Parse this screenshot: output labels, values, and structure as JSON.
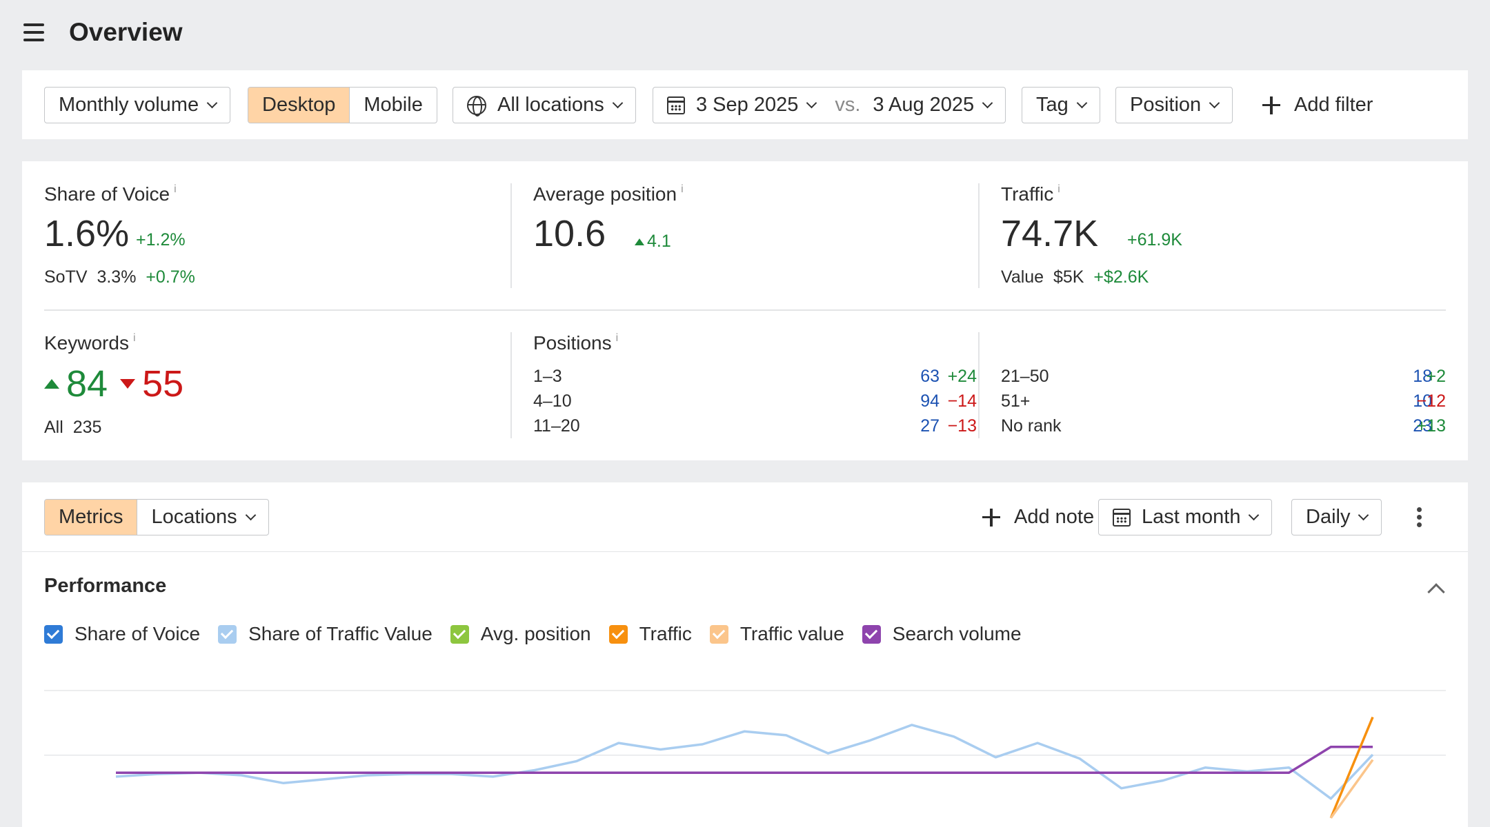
{
  "header": {
    "title": "Overview"
  },
  "filters": {
    "volume": "Monthly volume",
    "device_options": [
      "Desktop",
      "Mobile"
    ],
    "device_selected": "Desktop",
    "location": "All locations",
    "date_from": "3 Sep 2025",
    "vs": "vs.",
    "date_to": "3 Aug 2025",
    "tag": "Tag",
    "position": "Position",
    "add_filter": "Add filter"
  },
  "metrics": {
    "sov": {
      "label": "Share of Voice",
      "info": "i",
      "value": "1.6%",
      "delta": "+1.2%",
      "sub_label": "SoTV",
      "sub_value": "3.3%",
      "sub_delta": "+0.7%"
    },
    "avg_position": {
      "label": "Average position",
      "info": "i",
      "value": "10.6",
      "delta": "4.1"
    },
    "traffic": {
      "label": "Traffic",
      "info": "i",
      "value": "74.7K",
      "delta": "+61.9K",
      "sub_label": "Value",
      "sub_value": "$5K",
      "sub_delta": "+$2.6K"
    },
    "keywords": {
      "label": "Keywords",
      "info": "i",
      "up": "84",
      "down": "55",
      "all_label": "All",
      "all_value": "235"
    },
    "positions": {
      "label": "Positions",
      "info": "i",
      "left": [
        {
          "range": "1–3",
          "count": "63",
          "delta": "+24",
          "trend": "up"
        },
        {
          "range": "4–10",
          "count": "94",
          "delta": "−14",
          "trend": "down"
        },
        {
          "range": "11–20",
          "count": "27",
          "delta": "−13",
          "trend": "down"
        }
      ],
      "right": [
        {
          "range": "21–50",
          "count": "18",
          "delta": "+2",
          "trend": "up"
        },
        {
          "range": "51+",
          "count": "10",
          "delta": "−12",
          "trend": "down"
        },
        {
          "range": "No rank",
          "count": "23",
          "delta": "+13",
          "trend": "up"
        }
      ]
    }
  },
  "performance": {
    "tabs": [
      "Metrics",
      "Locations"
    ],
    "tab_selected": "Metrics",
    "add_note": "Add note",
    "period": "Last month",
    "interval": "Daily",
    "title": "Performance",
    "legend": [
      {
        "label": "Share of Voice",
        "color": "#2f7bd6",
        "checked": true
      },
      {
        "label": "Share of Traffic Value",
        "color": "#a9cdf0",
        "checked": true
      },
      {
        "label": "Avg. position",
        "color": "#8dc63f",
        "checked": true
      },
      {
        "label": "Traffic",
        "color": "#f7900f",
        "checked": true
      },
      {
        "label": "Traffic value",
        "color": "#fbc58b",
        "checked": true
      },
      {
        "label": "Search volume",
        "color": "#8e44ad",
        "checked": true
      }
    ]
  },
  "chart_data": {
    "type": "line",
    "title": "",
    "xlabel": "",
    "ylabel": "",
    "grid": true,
    "legend": "top-left",
    "x": [
      1,
      2,
      3,
      4,
      5,
      6,
      7,
      8,
      9,
      10,
      11,
      12,
      13,
      14,
      15,
      16,
      17,
      18,
      19,
      20,
      21,
      22,
      23,
      24,
      25,
      26,
      27,
      28,
      29,
      30,
      31
    ],
    "series": [
      {
        "name": "Share of Traffic Value",
        "color": "#a9cdf0",
        "values": [
          27,
          29,
          30,
          28,
          22,
          25,
          28,
          29,
          29,
          27,
          32,
          39,
          53,
          48,
          52,
          62,
          59,
          45,
          55,
          67,
          58,
          42,
          53,
          41,
          18,
          24,
          34,
          31,
          34,
          10,
          44
        ]
      },
      {
        "name": "Search volume",
        "color": "#8e44ad",
        "values": [
          30,
          30,
          30,
          30,
          30,
          30,
          30,
          30,
          30,
          30,
          30,
          30,
          30,
          30,
          30,
          30,
          30,
          30,
          30,
          30,
          30,
          30,
          30,
          30,
          30,
          30,
          30,
          30,
          30,
          50,
          50
        ]
      },
      {
        "name": "Traffic",
        "color": "#f7900f",
        "values": [
          null,
          null,
          null,
          null,
          null,
          null,
          null,
          null,
          null,
          null,
          null,
          null,
          null,
          null,
          null,
          null,
          null,
          null,
          null,
          null,
          null,
          null,
          null,
          null,
          null,
          null,
          null,
          null,
          null,
          -5,
          73
        ]
      },
      {
        "name": "Traffic value",
        "color": "#fbc58b",
        "values": [
          null,
          null,
          null,
          null,
          null,
          null,
          null,
          null,
          null,
          null,
          null,
          null,
          null,
          null,
          null,
          null,
          null,
          null,
          null,
          null,
          null,
          null,
          null,
          null,
          null,
          null,
          null,
          null,
          null,
          -5,
          40
        ]
      }
    ],
    "ylim": [
      -12,
      100
    ]
  }
}
